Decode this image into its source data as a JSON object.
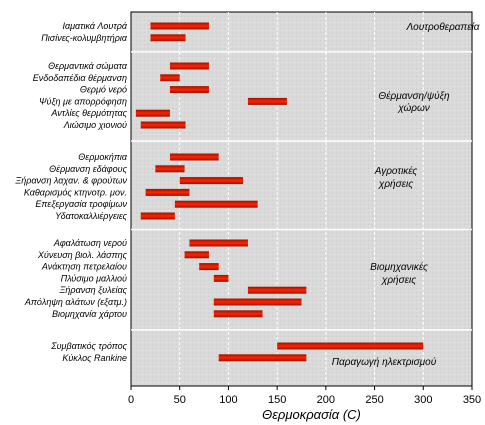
{
  "chart_data": {
    "type": "bar",
    "orientation": "horizontal-range",
    "xlabel": "Θερμοκρασία (C)",
    "xlim": [
      0,
      350
    ],
    "xticks": [
      0,
      50,
      100,
      150,
      200,
      250,
      300,
      350
    ],
    "grid": "vertical dashed",
    "colors": {
      "bar_center": "#ff2200",
      "bar_edge": "#9a1400",
      "panel": "#dcdcdc"
    },
    "groups": [
      {
        "name": "Λουτροθεραπεία",
        "items": [
          {
            "label": "Ιαματικά Λουτρά",
            "min": 20,
            "max": 80
          },
          {
            "label": "Πισίνες-κολυμβητήρια",
            "min": 20,
            "max": 56
          }
        ]
      },
      {
        "name": "Θέρμανση/ψύξη χώρων",
        "items": [
          {
            "label": "Θερμαντικά σώματα",
            "min": 40,
            "max": 80
          },
          {
            "label": "Ενδοδαπέδια θέρμανση",
            "min": 30,
            "max": 50
          },
          {
            "label": "Θερμό νερό",
            "min": 40,
            "max": 80
          },
          {
            "label": "Ψύξη με απορρόφηση",
            "min": 120,
            "max": 160
          },
          {
            "label": "Αντλίες θερμότητας",
            "min": 5,
            "max": 40
          },
          {
            "label": "Λιώσιμο χιονιού",
            "min": 10,
            "max": 56
          }
        ]
      },
      {
        "name": "Αγροτικές χρήσεις",
        "items": [
          {
            "label": "Θερμοκήπια",
            "min": 40,
            "max": 90
          },
          {
            "label": "Θέρμανση εδάφους",
            "min": 25,
            "max": 55
          },
          {
            "label": "Ξήρανση λαχαν. & φρούτων",
            "min": 50,
            "max": 115
          },
          {
            "label": "Καθαρισμός κτηνοτρ. μον.",
            "min": 15,
            "max": 60
          },
          {
            "label": "Επεξεργασία τροφίμων",
            "min": 45,
            "max": 130
          },
          {
            "label": "Υδατοκαλλιέργειες",
            "min": 10,
            "max": 45
          }
        ]
      },
      {
        "name": "Βιομηχανικές χρήσεις",
        "items": [
          {
            "label": "Αφαλάτωση νερού",
            "min": 60,
            "max": 120
          },
          {
            "label": "Χύνευση βιολ. λάσπης",
            "min": 55,
            "max": 80
          },
          {
            "label": "Ανάκτηση πετρελαίου",
            "min": 70,
            "max": 90
          },
          {
            "label": "Πλύσιμο μαλλιού",
            "min": 85,
            "max": 100
          },
          {
            "label": "Ξήρανση ξυλείας",
            "min": 120,
            "max": 180
          },
          {
            "label": "Απόληψη αλάτων (εξατμ.)",
            "min": 85,
            "max": 175
          },
          {
            "label": "Βιομηχανία χάρτου",
            "min": 85,
            "max": 135
          }
        ]
      },
      {
        "name": "Παραγωγή ηλεκτρισμού",
        "items": [
          {
            "label": "Συμβατικός τρόπος",
            "min": 150,
            "max": 300
          },
          {
            "label": "Κύκλος Rankine",
            "min": 90,
            "max": 180
          }
        ]
      }
    ]
  }
}
